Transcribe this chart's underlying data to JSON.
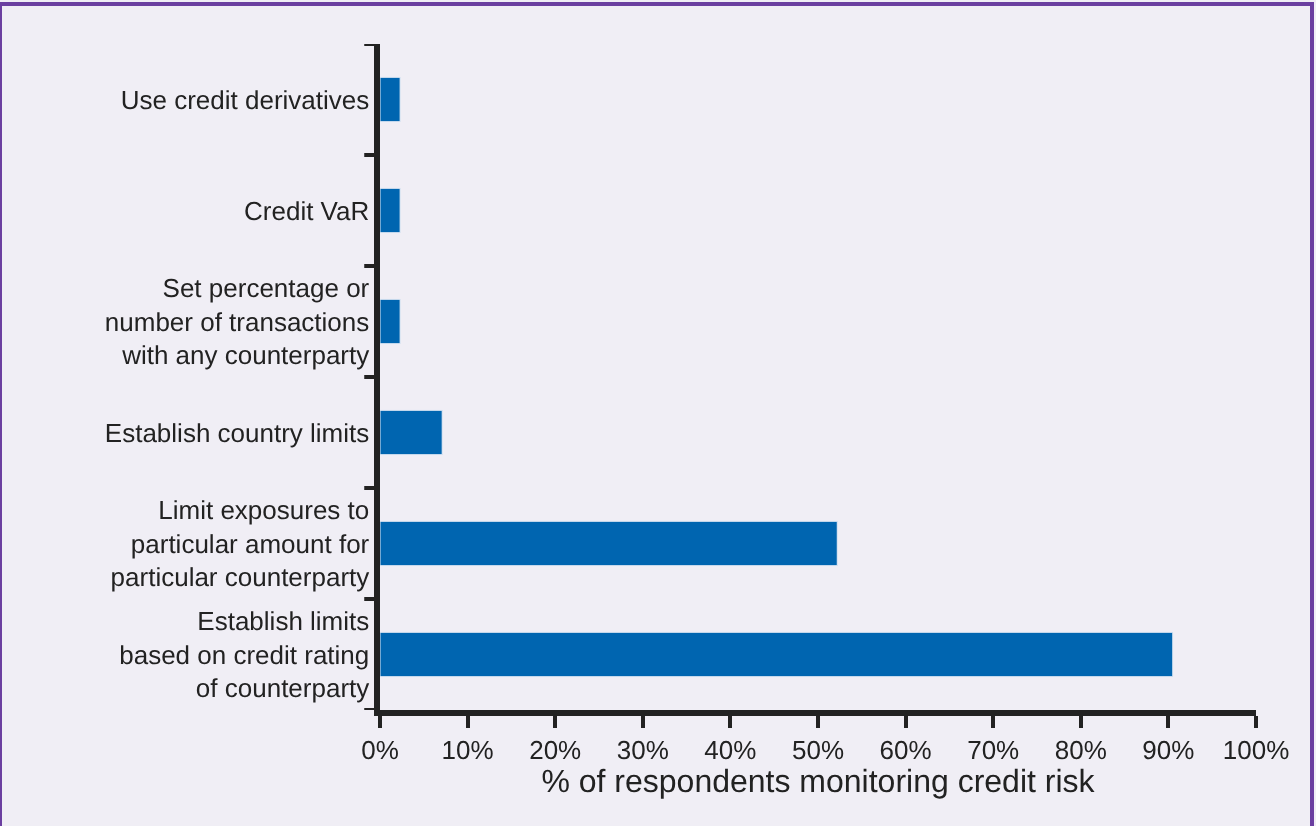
{
  "chart_data": {
    "type": "bar",
    "orientation": "horizontal",
    "xlabel": "% of respondents monitoring credit risk",
    "categories": [
      "Use credit derivatives",
      "Credit VaR",
      "Set percentage or\nnumber of transactions\nwith any counterparty",
      "Establish country limits",
      "Limit exposures to\nparticular amount for\nparticular counterparty",
      "Establish limits\nbased on credit rating\nof counterparty"
    ],
    "values": [
      2.3,
      2.3,
      2.3,
      7.1,
      52.2,
      90.5
    ],
    "color": "#0065b0",
    "xlim": [
      0,
      100
    ],
    "xticks": [
      {
        "value": 0,
        "label": "0%"
      },
      {
        "value": 10,
        "label": "10%"
      },
      {
        "value": 20,
        "label": "20%"
      },
      {
        "value": 30,
        "label": "30%"
      },
      {
        "value": 40,
        "label": "40%"
      },
      {
        "value": 50,
        "label": "50%"
      },
      {
        "value": 60,
        "label": "60%"
      },
      {
        "value": 70,
        "label": "70%"
      },
      {
        "value": 80,
        "label": "80%"
      },
      {
        "value": 90,
        "label": "90%"
      },
      {
        "value": 100,
        "label": "100%"
      }
    ],
    "grid": false
  }
}
